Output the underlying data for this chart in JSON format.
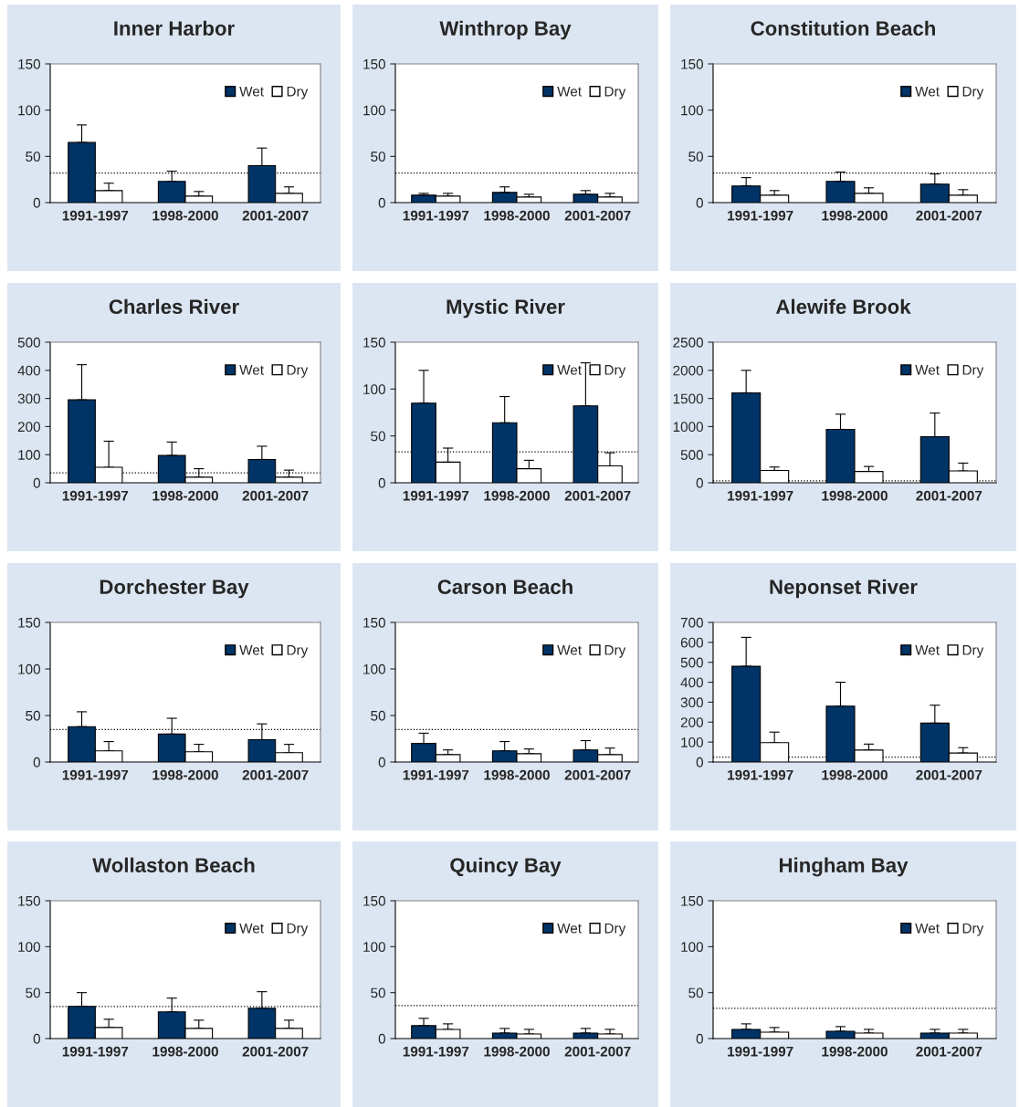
{
  "chart_data": [
    {
      "type": "bar",
      "title": "Inner Harbor",
      "categories": [
        "1991-1997",
        "1998-2000",
        "2001-2007"
      ],
      "series": [
        {
          "name": "Wet",
          "color": "#003366",
          "values": [
            65,
            23,
            40
          ],
          "errors": [
            [
              65,
              84
            ],
            [
              23,
              34
            ],
            [
              40,
              59
            ]
          ]
        },
        {
          "name": "Dry",
          "color": "#ffffff",
          "values": [
            13,
            7,
            10
          ],
          "errors": [
            [
              13,
              21
            ],
            [
              7,
              12
            ],
            [
              10,
              17
            ]
          ]
        }
      ],
      "ylim": [
        0,
        150
      ],
      "yticks": [
        0,
        50,
        100,
        150
      ],
      "ref_lines": [
        {
          "axis": "y",
          "value": 32,
          "line_style": "dotted",
          "color": "#000000"
        }
      ],
      "legend": "top right"
    },
    {
      "type": "bar",
      "title": "Winthrop Bay",
      "categories": [
        "1991-1997",
        "1998-2000",
        "2001-2007"
      ],
      "series": [
        {
          "name": "Wet",
          "color": "#003366",
          "values": [
            8,
            11,
            9
          ],
          "errors": [
            [
              8,
              10
            ],
            [
              11,
              17
            ],
            [
              9,
              13
            ]
          ]
        },
        {
          "name": "Dry",
          "color": "#ffffff",
          "values": [
            7,
            6,
            6
          ],
          "errors": [
            [
              7,
              10
            ],
            [
              6,
              9
            ],
            [
              6,
              10
            ]
          ]
        }
      ],
      "ylim": [
        0,
        150
      ],
      "yticks": [
        0,
        50,
        100,
        150
      ],
      "ref_lines": [
        {
          "axis": "y",
          "value": 32,
          "line_style": "dotted",
          "color": "#000000"
        }
      ],
      "legend": "top right"
    },
    {
      "type": "bar",
      "title": "Constitution Beach",
      "categories": [
        "1991-1997",
        "1998-2000",
        "2001-2007"
      ],
      "series": [
        {
          "name": "Wet",
          "color": "#003366",
          "values": [
            18,
            23,
            20
          ],
          "errors": [
            [
              18,
              27
            ],
            [
              23,
              33
            ],
            [
              20,
              31
            ]
          ]
        },
        {
          "name": "Dry",
          "color": "#ffffff",
          "values": [
            8,
            10,
            8
          ],
          "errors": [
            [
              8,
              13
            ],
            [
              10,
              16
            ],
            [
              8,
              14
            ]
          ]
        }
      ],
      "ylim": [
        0,
        150
      ],
      "yticks": [
        0,
        50,
        100,
        150
      ],
      "ref_lines": [
        {
          "axis": "y",
          "value": 32,
          "line_style": "dotted",
          "color": "#000000"
        }
      ],
      "legend": "top right"
    },
    {
      "type": "bar",
      "title": "Charles River",
      "categories": [
        "1991-1997",
        "1998-2000",
        "2001-2007"
      ],
      "series": [
        {
          "name": "Wet",
          "color": "#003366",
          "values": [
            295,
            97,
            83
          ],
          "errors": [
            [
              295,
              420
            ],
            [
              97,
              145
            ],
            [
              83,
              130
            ]
          ]
        },
        {
          "name": "Dry",
          "color": "#ffffff",
          "values": [
            55,
            20,
            20
          ],
          "errors": [
            [
              55,
              148
            ],
            [
              20,
              50
            ],
            [
              20,
              45
            ]
          ]
        }
      ],
      "ylim": [
        0,
        500
      ],
      "yticks": [
        0,
        100,
        200,
        300,
        400,
        500
      ],
      "ref_lines": [
        {
          "axis": "y",
          "value": 35,
          "line_style": "dotted",
          "color": "#000000"
        }
      ],
      "legend": "top right"
    },
    {
      "type": "bar",
      "title": "Mystic River",
      "categories": [
        "1991-1997",
        "1998-2000",
        "2001-2007"
      ],
      "series": [
        {
          "name": "Wet",
          "color": "#003366",
          "values": [
            85,
            64,
            82
          ],
          "errors": [
            [
              85,
              120
            ],
            [
              64,
              92
            ],
            [
              82,
              128
            ]
          ]
        },
        {
          "name": "Dry",
          "color": "#ffffff",
          "values": [
            22,
            15,
            18
          ],
          "errors": [
            [
              22,
              37
            ],
            [
              15,
              24
            ],
            [
              18,
              32
            ]
          ]
        }
      ],
      "ylim": [
        0,
        150
      ],
      "yticks": [
        0,
        50,
        100,
        150
      ],
      "ref_lines": [
        {
          "axis": "y",
          "value": 33,
          "line_style": "dotted",
          "color": "#000000"
        }
      ],
      "legend": "top right"
    },
    {
      "type": "bar",
      "title": "Alewife Brook",
      "categories": [
        "1991-1997",
        "1998-2000",
        "2001-2007"
      ],
      "series": [
        {
          "name": "Wet",
          "color": "#003366",
          "values": [
            1600,
            950,
            820
          ],
          "errors": [
            [
              1600,
              2000
            ],
            [
              950,
              1220
            ],
            [
              820,
              1240
            ]
          ]
        },
        {
          "name": "Dry",
          "color": "#ffffff",
          "values": [
            220,
            200,
            210
          ],
          "errors": [
            [
              220,
              280
            ],
            [
              200,
              290
            ],
            [
              210,
              350
            ]
          ]
        }
      ],
      "ylim": [
        0,
        2500
      ],
      "yticks": [
        0,
        500,
        1000,
        1500,
        2000,
        2500
      ],
      "ref_lines": [
        {
          "axis": "y",
          "value": 35,
          "line_style": "dotted",
          "color": "#000000"
        }
      ],
      "legend": "top right"
    },
    {
      "type": "bar",
      "title": "Dorchester Bay",
      "categories": [
        "1991-1997",
        "1998-2000",
        "2001-2007"
      ],
      "series": [
        {
          "name": "Wet",
          "color": "#003366",
          "values": [
            38,
            30,
            24
          ],
          "errors": [
            [
              38,
              54
            ],
            [
              30,
              47
            ],
            [
              24,
              41
            ]
          ]
        },
        {
          "name": "Dry",
          "color": "#ffffff",
          "values": [
            12,
            11,
            10
          ],
          "errors": [
            [
              12,
              22
            ],
            [
              11,
              19
            ],
            [
              10,
              19
            ]
          ]
        }
      ],
      "ylim": [
        0,
        150
      ],
      "yticks": [
        0,
        50,
        100,
        150
      ],
      "ref_lines": [
        {
          "axis": "y",
          "value": 35,
          "line_style": "dotted",
          "color": "#000000"
        }
      ],
      "legend": "top right"
    },
    {
      "type": "bar",
      "title": "Carson Beach",
      "categories": [
        "1991-1997",
        "1998-2000",
        "2001-2007"
      ],
      "series": [
        {
          "name": "Wet",
          "color": "#003366",
          "values": [
            20,
            12,
            13
          ],
          "errors": [
            [
              20,
              31
            ],
            [
              12,
              22
            ],
            [
              13,
              23
            ]
          ]
        },
        {
          "name": "Dry",
          "color": "#ffffff",
          "values": [
            8,
            9,
            8
          ],
          "errors": [
            [
              8,
              13
            ],
            [
              9,
              14
            ],
            [
              8,
              15
            ]
          ]
        }
      ],
      "ylim": [
        0,
        150
      ],
      "yticks": [
        0,
        50,
        100,
        150
      ],
      "ref_lines": [
        {
          "axis": "y",
          "value": 35,
          "line_style": "dotted",
          "color": "#000000"
        }
      ],
      "legend": "top right"
    },
    {
      "type": "bar",
      "title": "Neponset River",
      "categories": [
        "1991-1997",
        "1998-2000",
        "2001-2007"
      ],
      "series": [
        {
          "name": "Wet",
          "color": "#003366",
          "values": [
            480,
            280,
            195
          ],
          "errors": [
            [
              480,
              625
            ],
            [
              280,
              400
            ],
            [
              195,
              285
            ]
          ]
        },
        {
          "name": "Dry",
          "color": "#ffffff",
          "values": [
            97,
            60,
            45
          ],
          "errors": [
            [
              97,
              150
            ],
            [
              60,
              90
            ],
            [
              45,
              72
            ]
          ]
        }
      ],
      "ylim": [
        0,
        700
      ],
      "yticks": [
        0,
        100,
        200,
        300,
        400,
        500,
        600,
        700
      ],
      "ref_lines": [
        {
          "axis": "y",
          "value": 25,
          "line_style": "dotted",
          "color": "#000000"
        }
      ],
      "legend": "top right"
    },
    {
      "type": "bar",
      "title": "Wollaston Beach",
      "categories": [
        "1991-1997",
        "1998-2000",
        "2001-2007"
      ],
      "series": [
        {
          "name": "Wet",
          "color": "#003366",
          "values": [
            35,
            29,
            33
          ],
          "errors": [
            [
              35,
              50
            ],
            [
              29,
              44
            ],
            [
              33,
              51
            ]
          ]
        },
        {
          "name": "Dry",
          "color": "#ffffff",
          "values": [
            12,
            11,
            11
          ],
          "errors": [
            [
              12,
              21
            ],
            [
              11,
              20
            ],
            [
              11,
              20
            ]
          ]
        }
      ],
      "ylim": [
        0,
        150
      ],
      "yticks": [
        0,
        50,
        100,
        150
      ],
      "ref_lines": [
        {
          "axis": "y",
          "value": 35,
          "line_style": "dotted",
          "color": "#000000"
        }
      ],
      "legend": "top right"
    },
    {
      "type": "bar",
      "title": "Quincy Bay",
      "categories": [
        "1991-1997",
        "1998-2000",
        "2001-2007"
      ],
      "series": [
        {
          "name": "Wet",
          "color": "#003366",
          "values": [
            14,
            6,
            6
          ],
          "errors": [
            [
              14,
              22
            ],
            [
              6,
              11
            ],
            [
              6,
              11
            ]
          ]
        },
        {
          "name": "Dry",
          "color": "#ffffff",
          "values": [
            10,
            5,
            5
          ],
          "errors": [
            [
              10,
              16
            ],
            [
              5,
              10
            ],
            [
              5,
              10
            ]
          ]
        }
      ],
      "ylim": [
        0,
        150
      ],
      "yticks": [
        0,
        50,
        100,
        150
      ],
      "ref_lines": [
        {
          "axis": "y",
          "value": 36,
          "line_style": "dotted",
          "color": "#000000"
        }
      ],
      "legend": "top right"
    },
    {
      "type": "bar",
      "title": "Hingham Bay",
      "categories": [
        "1991-1997",
        "1998-2000",
        "2001-2007"
      ],
      "series": [
        {
          "name": "Wet",
          "color": "#003366",
          "values": [
            10,
            8,
            6
          ],
          "errors": [
            [
              10,
              16
            ],
            [
              8,
              13
            ],
            [
              6,
              10
            ]
          ]
        },
        {
          "name": "Dry",
          "color": "#ffffff",
          "values": [
            7,
            6,
            6
          ],
          "errors": [
            [
              7,
              12
            ],
            [
              6,
              10
            ],
            [
              6,
              10
            ]
          ]
        }
      ],
      "ylim": [
        0,
        150
      ],
      "yticks": [
        0,
        50,
        100,
        150
      ],
      "ref_lines": [
        {
          "axis": "y",
          "value": 33,
          "line_style": "dotted",
          "color": "#000000"
        }
      ],
      "legend": "top right"
    }
  ]
}
